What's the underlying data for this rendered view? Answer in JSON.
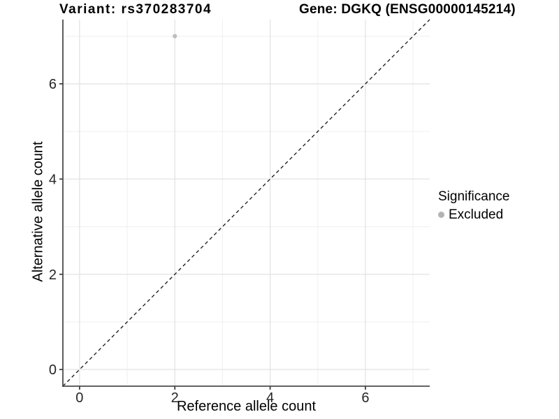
{
  "title": {
    "variant": "Variant: rs370283704",
    "gene": "Gene: DGKQ (ENSG00000145214)"
  },
  "axes": {
    "x": {
      "label": "Reference allele count"
    },
    "y": {
      "label": "Alternative allele count"
    }
  },
  "legend": {
    "title": "Significance",
    "items": [
      {
        "label": "Excluded",
        "color": "#b3b3b3"
      }
    ]
  },
  "colors": {
    "background": "#ffffff",
    "grid_major": "#e3e3e3",
    "grid_minor": "#efefef",
    "axis_line": "#4d4d4d",
    "tick_mark": "#404040",
    "tick_label": "#262626",
    "identity_line": "#141414",
    "point": "#bdbdbd"
  },
  "chart_data": {
    "type": "scatter",
    "title": "Variant: rs370283704   Gene: DGKQ (ENSG00000145214)",
    "xlabel": "Reference allele count",
    "ylabel": "Alternative allele count",
    "xlim": [
      -0.35,
      7.35
    ],
    "ylim": [
      -0.35,
      7.35
    ],
    "x_ticks": [
      0,
      2,
      4,
      6
    ],
    "y_ticks": [
      0,
      2,
      4,
      6
    ],
    "x_minor_ticks": [
      1,
      3,
      5,
      7
    ],
    "y_minor_ticks": [
      1,
      3,
      5,
      7
    ],
    "grid": "on",
    "legend_position": "right",
    "legend_title": "Significance",
    "series": [
      {
        "name": "Excluded",
        "color": "#bdbdbd",
        "marker": "circle",
        "points": [
          {
            "x": 2,
            "y": 7
          }
        ]
      }
    ],
    "identity_line": {
      "equation": "y = x",
      "style": "dashed",
      "color": "#141414"
    }
  }
}
